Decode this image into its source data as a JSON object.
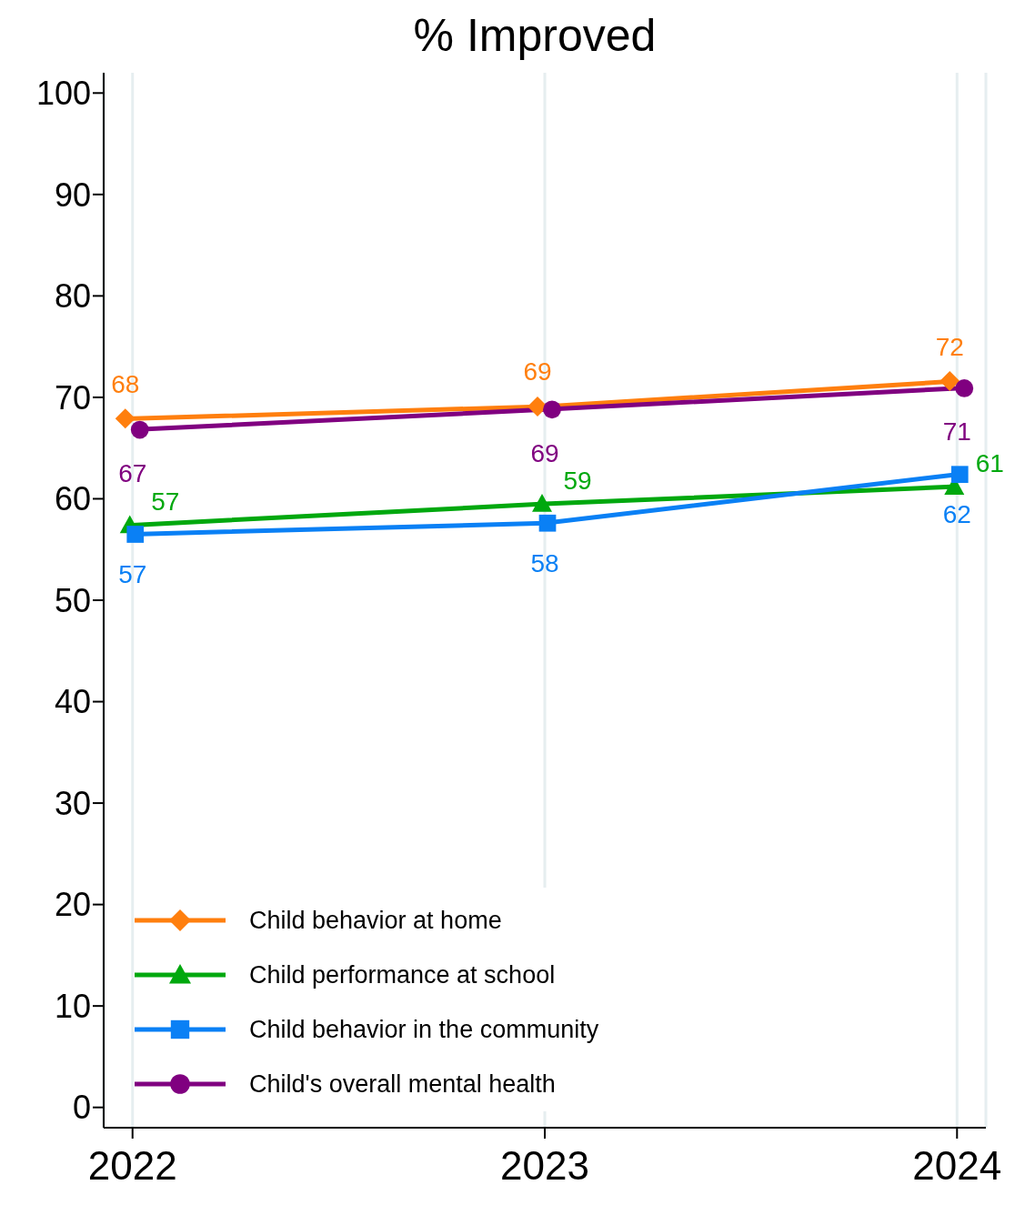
{
  "chart_data": {
    "type": "line",
    "title": "% Improved",
    "categories": [
      "2022",
      "2023",
      "2024"
    ],
    "series": [
      {
        "name": "Child behavior at home",
        "color": "#ff7f0e",
        "marker": "diamond",
        "values": [
          67.9,
          69.1,
          71.6
        ],
        "value_labels": [
          "68",
          "69",
          "72"
        ]
      },
      {
        "name": "Child performance at school",
        "color": "#00a80e",
        "marker": "triangle",
        "values": [
          57.4,
          59.5,
          61.2
        ],
        "value_labels": [
          "57",
          "59",
          "61"
        ]
      },
      {
        "name": "Child behavior in the community",
        "color": "#0a80f5",
        "marker": "square",
        "values": [
          56.5,
          57.6,
          62.4
        ],
        "value_labels": [
          "57",
          "58",
          "62"
        ]
      },
      {
        "name": "Child's overall mental health",
        "color": "#800080",
        "marker": "circle",
        "values": [
          66.8,
          68.8,
          70.9
        ],
        "value_labels": [
          "67",
          "69",
          "71"
        ]
      }
    ],
    "ylim": [
      -2,
      102
    ],
    "yticks": [
      0,
      10,
      20,
      30,
      40,
      50,
      60,
      70,
      80,
      90,
      100
    ],
    "grid": "x",
    "legend": "bottom left",
    "line_style": "solid"
  }
}
